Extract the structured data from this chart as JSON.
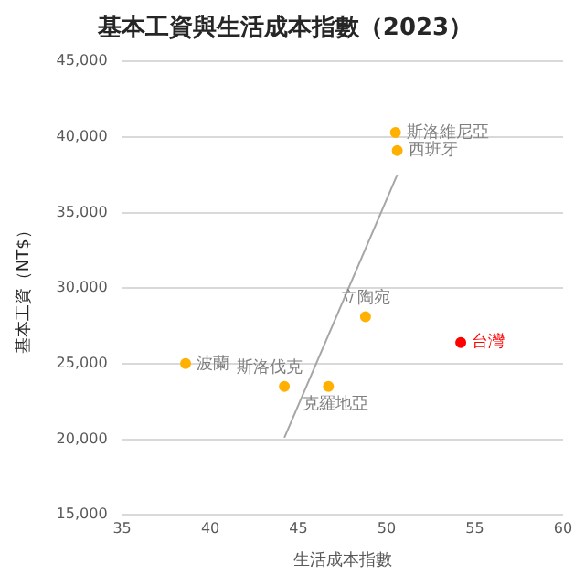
{
  "chart_data": {
    "type": "scatter",
    "title": "基本工資與生活成本指數（2023）",
    "xlabel": "生活成本指數",
    "ylabel": "基本工資（NT$）",
    "series": [
      {
        "x": [
          38.6,
          44.2,
          46.7,
          48.8,
          54.2,
          50.5,
          50.6
        ],
        "values": [
          25000,
          23500,
          23500,
          28100,
          26400,
          40300,
          39100
        ],
        "colors": [
          "#ffb000",
          "#ffb000",
          "#ffb000",
          "#ffb000",
          "#ff0000",
          "#ffb000",
          "#ffb000"
        ]
      },
      {
        "type": "line",
        "x": [
          44.2,
          50.6
        ],
        "values": [
          20100,
          37500
        ],
        "color": "#a6a6a6",
        "marker": "none"
      }
    ],
    "annotations": [
      {
        "text": "波蘭",
        "x": 38.6,
        "y": 25000
      },
      {
        "text": "斯洛伐克",
        "x": 44.2,
        "y": 23500
      },
      {
        "text": "克羅地亞",
        "x": 46.7,
        "y": 23500
      },
      {
        "text": "立陶宛",
        "x": 48.8,
        "y": 28100
      },
      {
        "text": "台灣",
        "x": 54.2,
        "y": 26400
      },
      {
        "text": "斯洛維尼亞",
        "x": 50.5,
        "y": 40300
      },
      {
        "text": "西班牙",
        "x": 50.6,
        "y": 39100
      }
    ],
    "xlim": [
      35,
      60
    ],
    "xticks": [
      35,
      40,
      45,
      50,
      55,
      60
    ],
    "ylim": [
      15000,
      45000
    ],
    "yticks": [
      {
        "value": 15000,
        "label": "15,000"
      },
      {
        "value": 20000,
        "label": "20,000"
      },
      {
        "value": 25000,
        "label": "25,000"
      },
      {
        "value": 30000,
        "label": "30,000"
      },
      {
        "value": 35000,
        "label": "35,000"
      },
      {
        "value": 40000,
        "label": "40,000"
      },
      {
        "value": 45000,
        "label": "45,000"
      }
    ],
    "grid": "y",
    "legend": false,
    "marker": "circle"
  }
}
